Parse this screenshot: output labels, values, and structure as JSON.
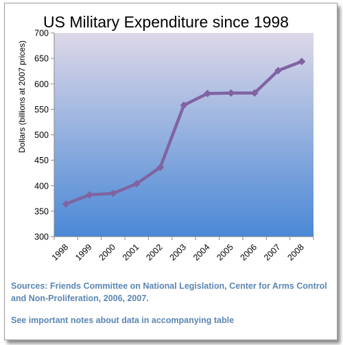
{
  "chart_data": {
    "type": "line",
    "title": "US Military Expenditure since 1998",
    "ylabel": "Dollars (billions at 2007 prices)",
    "xlabel": "",
    "categories": [
      "1998",
      "1999",
      "2000",
      "2001",
      "2002",
      "2003",
      "2004",
      "2005",
      "2006",
      "2007",
      "2008"
    ],
    "series": [
      {
        "values": [
          364,
          382,
          385,
          404,
          436,
          558,
          581,
          582,
          582,
          626,
          644
        ]
      }
    ],
    "ylim": [
      300,
      700
    ],
    "yticks": [
      300,
      350,
      400,
      450,
      500,
      550,
      600,
      650,
      700
    ],
    "grid": false,
    "legend": "none",
    "colors": {
      "line": "#8064a2",
      "plot_top": "#ddd8e8",
      "plot_bottom": "#4a88d6",
      "note_text": "#5b86b3"
    }
  },
  "notes": {
    "sources": "Sources: Friends Committee on National Legislation, Center for Arms Control and Non-Proliferation, 2006, 2007.",
    "data_note": "See important notes about data in accompanying table"
  }
}
